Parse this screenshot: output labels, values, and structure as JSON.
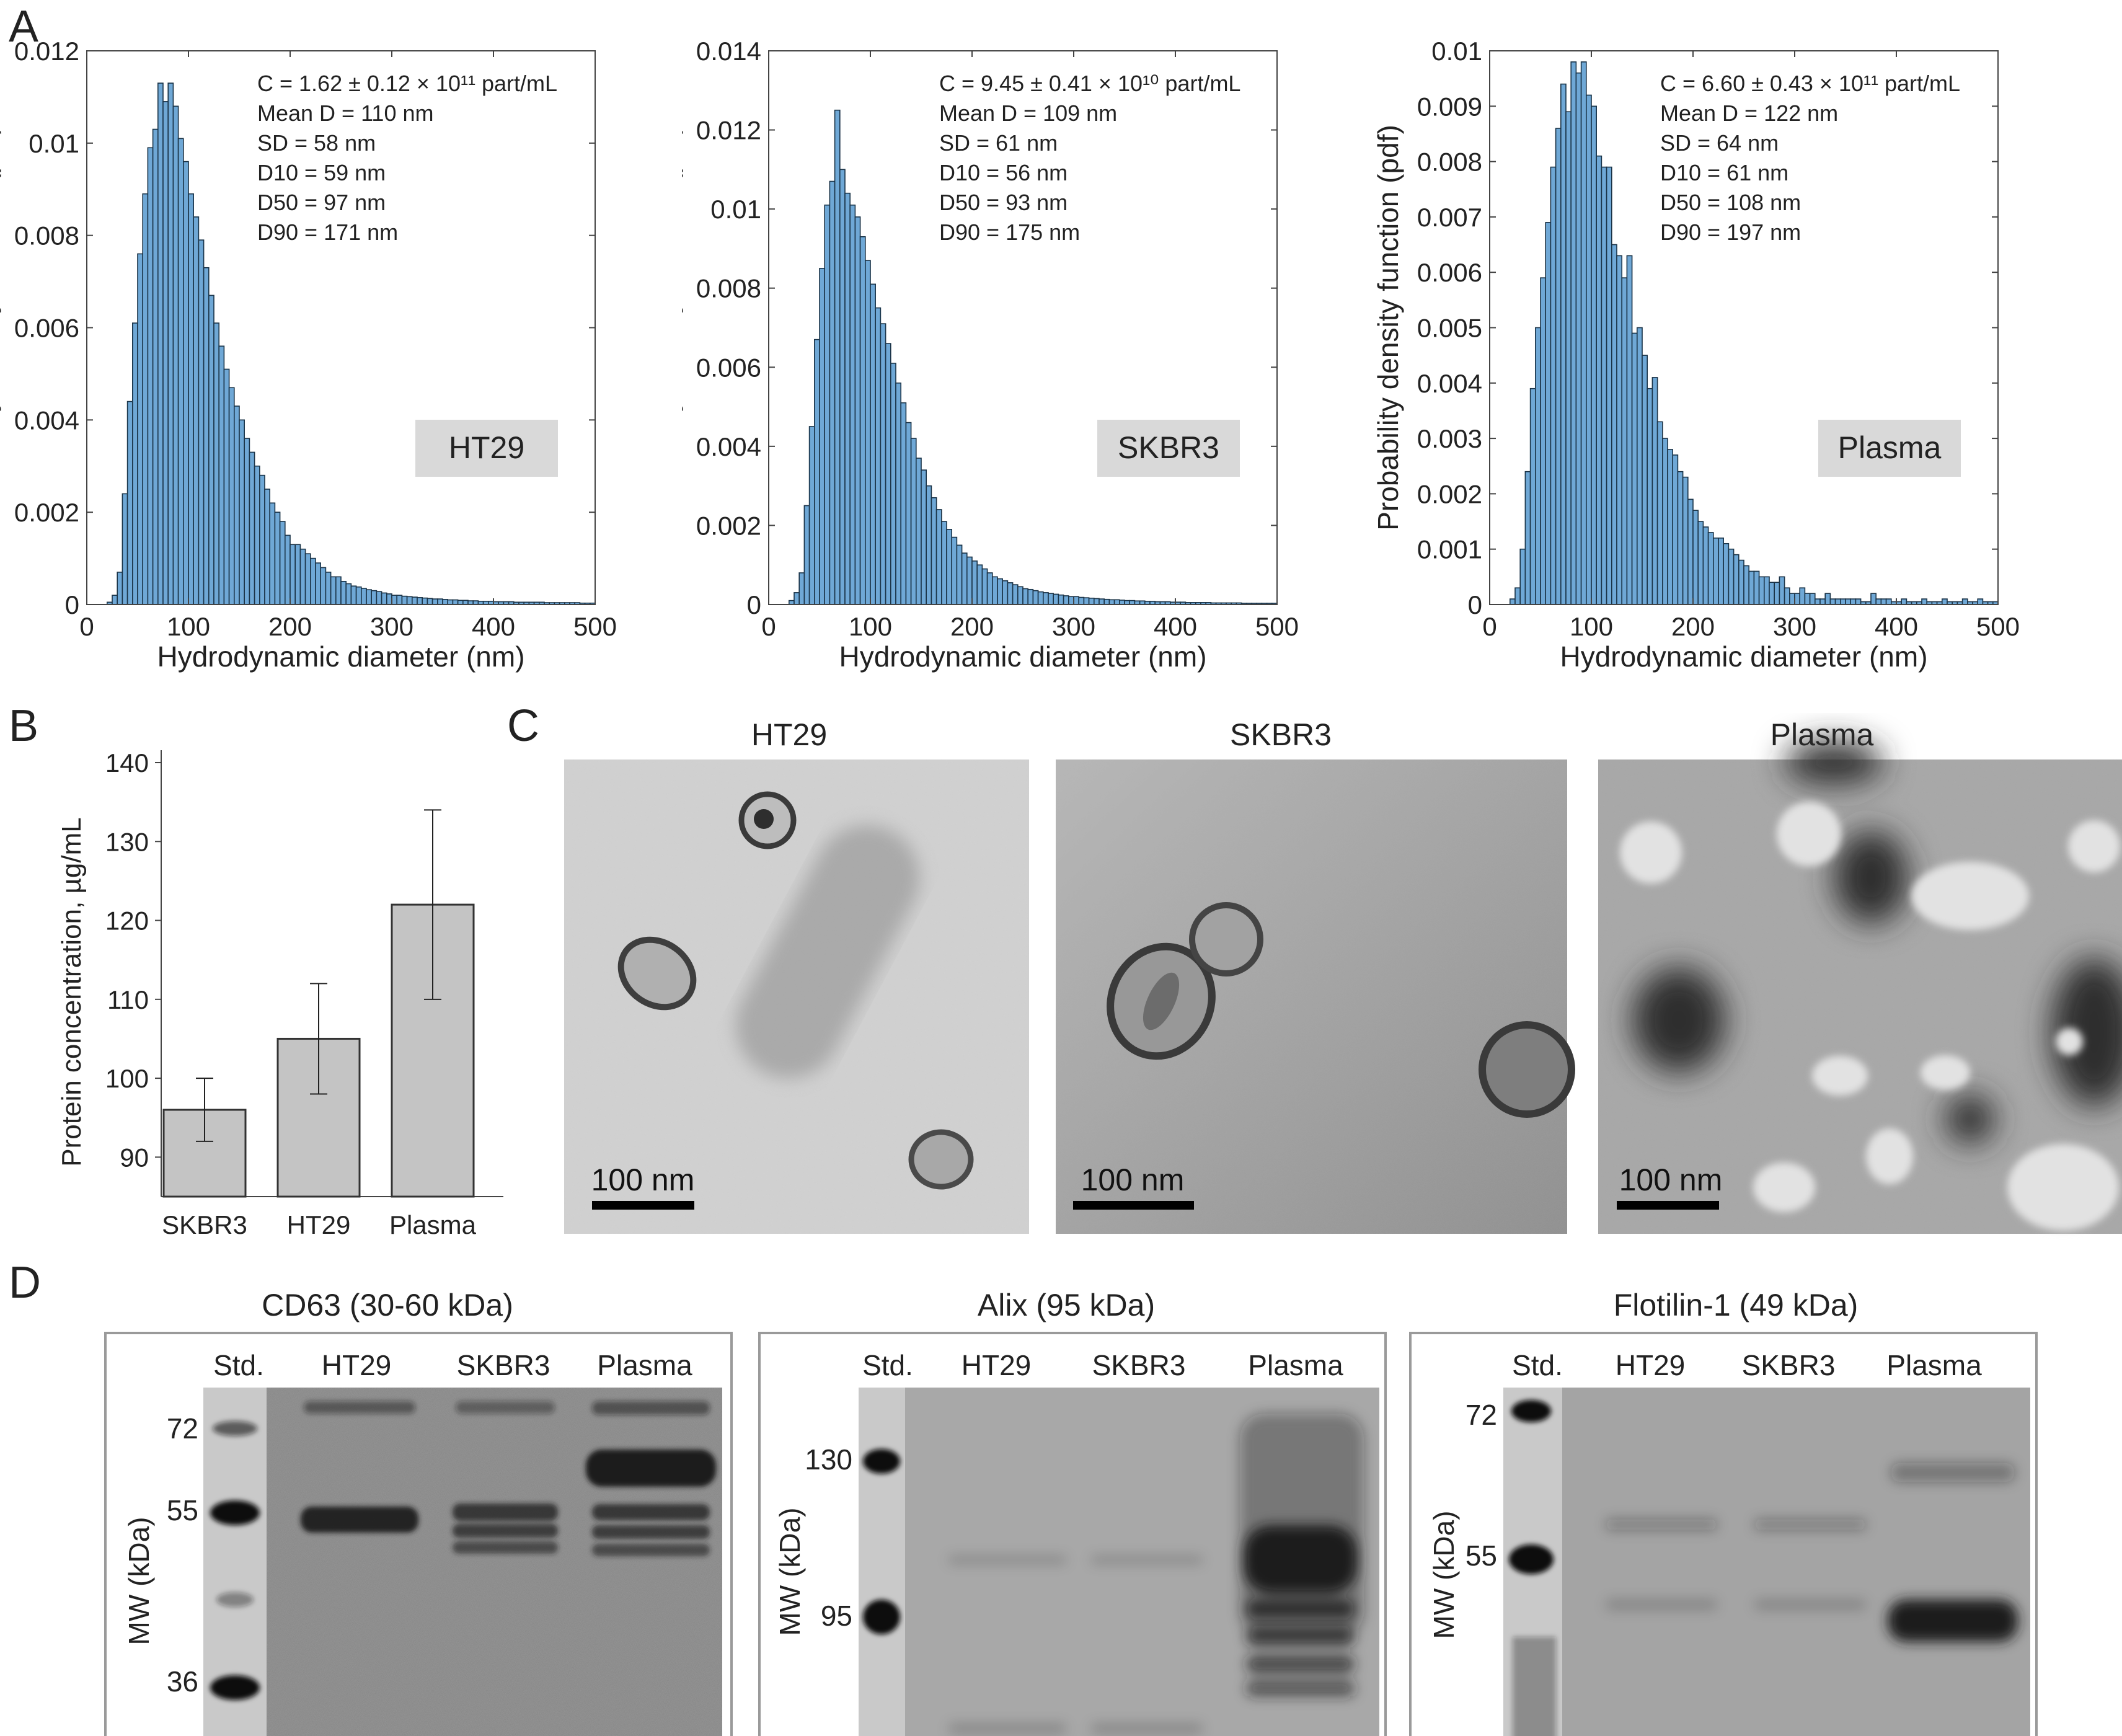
{
  "panels": {
    "A": "A",
    "B": "B",
    "C": "C",
    "D": "D"
  },
  "panel_a": {
    "xlabel": "Hydrodynamic diameter (nm)",
    "ylabel": "Probability density function (pdf)",
    "xticks": [
      "0",
      "100",
      "200",
      "300",
      "400",
      "500"
    ]
  },
  "chart_data": [
    {
      "type": "bar",
      "panel": "A",
      "tag": "HT29",
      "xlabel": "Hydrodynamic diameter (nm)",
      "ylabel": "Probability density function (pdf)",
      "xlim": [
        0,
        500
      ],
      "ylim": [
        0,
        0.012
      ],
      "yticks": [
        "0",
        "0.002",
        "0.004",
        "0.006",
        "0.008",
        "0.01",
        "0.012"
      ],
      "stats": [
        "C = 1.62 ± 0.12 × 10¹¹ part/mL",
        "Mean D = 110 nm",
        "SD = 58 nm",
        "D10 = 59 nm",
        "D50 =  97 nm",
        "D90 = 171 nm"
      ],
      "bin_width": 5,
      "x": [
        15,
        20,
        25,
        30,
        35,
        40,
        45,
        50,
        55,
        60,
        65,
        70,
        75,
        80,
        85,
        90,
        95,
        100,
        105,
        110,
        115,
        120,
        125,
        130,
        135,
        140,
        145,
        150,
        155,
        160,
        165,
        170,
        175,
        180,
        185,
        190,
        195,
        200,
        205,
        210,
        215,
        220,
        225,
        230,
        235,
        240,
        245,
        250,
        255,
        260,
        265,
        270,
        275,
        280,
        285,
        290,
        295,
        300,
        305,
        310,
        315,
        320,
        325,
        330,
        335,
        340,
        345,
        350,
        355,
        360,
        365,
        370,
        375,
        380,
        385,
        390,
        395,
        400,
        405,
        410,
        415,
        420,
        425,
        430,
        435,
        440,
        445,
        450,
        455,
        460,
        465,
        470,
        475,
        480,
        485,
        490,
        495
      ],
      "values": [
        0,
        5e-05,
        0.0002,
        0.0007,
        0.0024,
        0.0044,
        0.0061,
        0.0076,
        0.0089,
        0.0099,
        0.0103,
        0.0113,
        0.0109,
        0.0113,
        0.0108,
        0.0101,
        0.0096,
        0.0089,
        0.0084,
        0.0079,
        0.0073,
        0.0067,
        0.0061,
        0.0056,
        0.0051,
        0.0047,
        0.0043,
        0.004,
        0.0036,
        0.0033,
        0.003,
        0.0028,
        0.0025,
        0.0022,
        0.002,
        0.0018,
        0.0015,
        0.0013,
        0.0013,
        0.0012,
        0.0011,
        0.001,
        0.0009,
        0.0008,
        0.0007,
        0.0006,
        0.0006,
        0.0005,
        0.00045,
        0.0004,
        0.00038,
        0.00035,
        0.00032,
        0.0003,
        0.00028,
        0.00025,
        0.00023,
        0.0002,
        0.0002,
        0.00018,
        0.00017,
        0.00016,
        0.00015,
        0.00014,
        0.00013,
        0.00012,
        0.00012,
        0.00011,
        0.0001,
        0.0001,
        9e-05,
        9e-05,
        8e-05,
        8e-05,
        7e-05,
        7e-05,
        7e-05,
        6e-05,
        6e-05,
        6e-05,
        6e-05,
        5e-05,
        5e-05,
        5e-05,
        5e-05,
        5e-05,
        5e-05,
        4e-05,
        4e-05,
        4e-05,
        4e-05,
        4e-05,
        4e-05,
        4e-05,
        3e-05,
        3e-05,
        3e-05
      ]
    },
    {
      "type": "bar",
      "panel": "A",
      "tag": "SKBR3",
      "xlabel": "Hydrodynamic diameter (nm)",
      "ylabel": "Probability density function (pdf)",
      "xlim": [
        0,
        500
      ],
      "ylim": [
        0,
        0.014
      ],
      "yticks": [
        "0",
        "0.002",
        "0.004",
        "0.006",
        "0.008",
        "0.01",
        "0.012",
        "0.014"
      ],
      "stats": [
        "C = 9.45 ± 0.41 × 10¹⁰ part/mL",
        "Mean D = 109 nm",
        "SD = 61 nm",
        "D10 = 56 nm",
        "D50 = 93 nm",
        "D90 = 175 nm"
      ],
      "bin_width": 5,
      "x": [
        15,
        20,
        25,
        30,
        35,
        40,
        45,
        50,
        55,
        60,
        65,
        70,
        75,
        80,
        85,
        90,
        95,
        100,
        105,
        110,
        115,
        120,
        125,
        130,
        135,
        140,
        145,
        150,
        155,
        160,
        165,
        170,
        175,
        180,
        185,
        190,
        195,
        200,
        205,
        210,
        215,
        220,
        225,
        230,
        235,
        240,
        245,
        250,
        255,
        260,
        265,
        270,
        275,
        280,
        285,
        290,
        295,
        300,
        305,
        310,
        315,
        320,
        325,
        330,
        335,
        340,
        345,
        350,
        355,
        360,
        365,
        370,
        375,
        380,
        385,
        390,
        395,
        400,
        405,
        410,
        415,
        420,
        425,
        430,
        435,
        440,
        445,
        450,
        455,
        460,
        465,
        470,
        475,
        480,
        485,
        490,
        495
      ],
      "values": [
        0,
        0.0001,
        0.0003,
        0.0008,
        0.0025,
        0.0045,
        0.0067,
        0.0085,
        0.0101,
        0.0107,
        0.0125,
        0.011,
        0.0104,
        0.0101,
        0.0098,
        0.0093,
        0.0087,
        0.0081,
        0.0075,
        0.0071,
        0.0066,
        0.0061,
        0.0056,
        0.0051,
        0.0046,
        0.0042,
        0.0037,
        0.0034,
        0.003,
        0.0027,
        0.0024,
        0.0021,
        0.0019,
        0.0017,
        0.0015,
        0.0013,
        0.0012,
        0.0011,
        0.001,
        0.0009,
        0.0008,
        0.0007,
        0.00065,
        0.0006,
        0.00055,
        0.0005,
        0.00045,
        0.0004,
        0.00038,
        0.00035,
        0.00032,
        0.0003,
        0.00028,
        0.00026,
        0.00024,
        0.00022,
        0.0002,
        0.0002,
        0.00018,
        0.00017,
        0.00016,
        0.00015,
        0.00014,
        0.00013,
        0.00012,
        0.00012,
        0.00011,
        0.0001,
        0.0001,
        9e-05,
        9e-05,
        8e-05,
        8e-05,
        7e-05,
        7e-05,
        7e-05,
        6e-05,
        6e-05,
        6e-05,
        5e-05,
        5e-05,
        5e-05,
        5e-05,
        5e-05,
        4e-05,
        4e-05,
        4e-05,
        4e-05,
        4e-05,
        4e-05,
        3e-05,
        3e-05,
        3e-05,
        3e-05,
        3e-05,
        3e-05,
        3e-05
      ]
    },
    {
      "type": "bar",
      "panel": "A",
      "tag": "Plasma",
      "xlabel": "Hydrodynamic diameter (nm)",
      "ylabel": "Probability density function (pdf)",
      "xlim": [
        0,
        500
      ],
      "ylim": [
        0,
        0.01
      ],
      "yticks": [
        "0",
        "0.001",
        "0.002",
        "0.003",
        "0.004",
        "0.005",
        "0.006",
        "0.007",
        "0.008",
        "0.009",
        "0.01"
      ],
      "stats": [
        "C = 6.60 ± 0.43 × 10¹¹ part/mL",
        "Mean D = 122 nm",
        "SD = 64 nm",
        "D10 = 61 nm",
        "D50 = 108 nm",
        "D90 = 197 nm"
      ],
      "bin_width": 5,
      "x": [
        15,
        20,
        25,
        30,
        35,
        40,
        45,
        50,
        55,
        60,
        65,
        70,
        75,
        80,
        85,
        90,
        95,
        100,
        105,
        110,
        115,
        120,
        125,
        130,
        135,
        140,
        145,
        150,
        155,
        160,
        165,
        170,
        175,
        180,
        185,
        190,
        195,
        200,
        205,
        210,
        215,
        220,
        225,
        230,
        235,
        240,
        245,
        250,
        255,
        260,
        265,
        270,
        275,
        280,
        285,
        290,
        295,
        300,
        305,
        310,
        315,
        320,
        325,
        330,
        335,
        340,
        345,
        350,
        355,
        360,
        365,
        370,
        375,
        380,
        385,
        390,
        395,
        400,
        405,
        410,
        415,
        420,
        425,
        430,
        435,
        440,
        445,
        450,
        455,
        460,
        465,
        470,
        475,
        480,
        485,
        490,
        495
      ],
      "values": [
        0,
        0.0001,
        0.0003,
        0.001,
        0.0024,
        0.0039,
        0.005,
        0.0059,
        0.0069,
        0.0079,
        0.0086,
        0.0094,
        0.0089,
        0.0098,
        0.0096,
        0.0098,
        0.0092,
        0.009,
        0.0081,
        0.0079,
        0.0079,
        0.0065,
        0.0063,
        0.0059,
        0.0063,
        0.0049,
        0.005,
        0.0045,
        0.0039,
        0.0041,
        0.0033,
        0.003,
        0.0028,
        0.0027,
        0.0024,
        0.0023,
        0.0019,
        0.0017,
        0.0015,
        0.0014,
        0.0013,
        0.0012,
        0.0012,
        0.0011,
        0.001,
        0.0009,
        0.0008,
        0.0007,
        0.0006,
        0.0006,
        0.0005,
        0.0005,
        0.0004,
        0.0004,
        0.0005,
        0.0003,
        0.0002,
        0.0002,
        0.0003,
        0.0002,
        0.0002,
        0.0001,
        0.0001,
        0.0002,
        0.0001,
        0.0001,
        0.0001,
        0.0001,
        0.0001,
        0.0001,
        5e-05,
        5e-05,
        0.0002,
        0.0001,
        0.0001,
        0.0001,
        5e-05,
        5e-05,
        0.0001,
        5e-05,
        5e-05,
        5e-05,
        0.0001,
        5e-05,
        5e-05,
        5e-05,
        0.0001,
        5e-05,
        5e-05,
        5e-05,
        0.0001,
        5e-05,
        5e-05,
        0.0001,
        5e-05,
        5e-05,
        5e-05
      ]
    },
    {
      "type": "bar",
      "panel": "B",
      "ylabel": "Protein concentration, µg/mL",
      "ylim": [
        85,
        140
      ],
      "yticks": [
        "90",
        "100",
        "110",
        "120",
        "130",
        "140"
      ],
      "categories": [
        "SKBR3",
        "HT29",
        "Plasma"
      ],
      "values": [
        96,
        105,
        122
      ],
      "error": [
        4,
        7,
        12
      ]
    }
  ],
  "panel_c": {
    "titles": [
      "HT29",
      "SKBR3",
      "Plasma"
    ],
    "scale_bar": "100 nm"
  },
  "panel_d": {
    "blots": [
      {
        "title": "CD63 (30-60 kDa)",
        "lanes": [
          "Std.",
          "HT29",
          "SKBR3",
          "Plasma"
        ],
        "mw_label": "MW (kDa)",
        "markers": [
          "72",
          "55",
          "36"
        ]
      },
      {
        "title": "Alix (95 kDa)",
        "lanes": [
          "Std.",
          "HT29",
          "SKBR3",
          "Plasma"
        ],
        "mw_label": "MW (kDa)",
        "markers": [
          "130",
          "95"
        ]
      },
      {
        "title": "Flotilin-1 (49 kDa)",
        "lanes": [
          "Std.",
          "HT29",
          "SKBR3",
          "Plasma"
        ],
        "mw_label": "MW (kDa)",
        "markers": [
          "72",
          "55"
        ]
      }
    ]
  },
  "colors": {
    "bar_fill": "#6fa8d6",
    "bar_stroke": "#1a3347",
    "bar_b": "#c4c4c4",
    "tag_bg": "#d9d9d9"
  }
}
